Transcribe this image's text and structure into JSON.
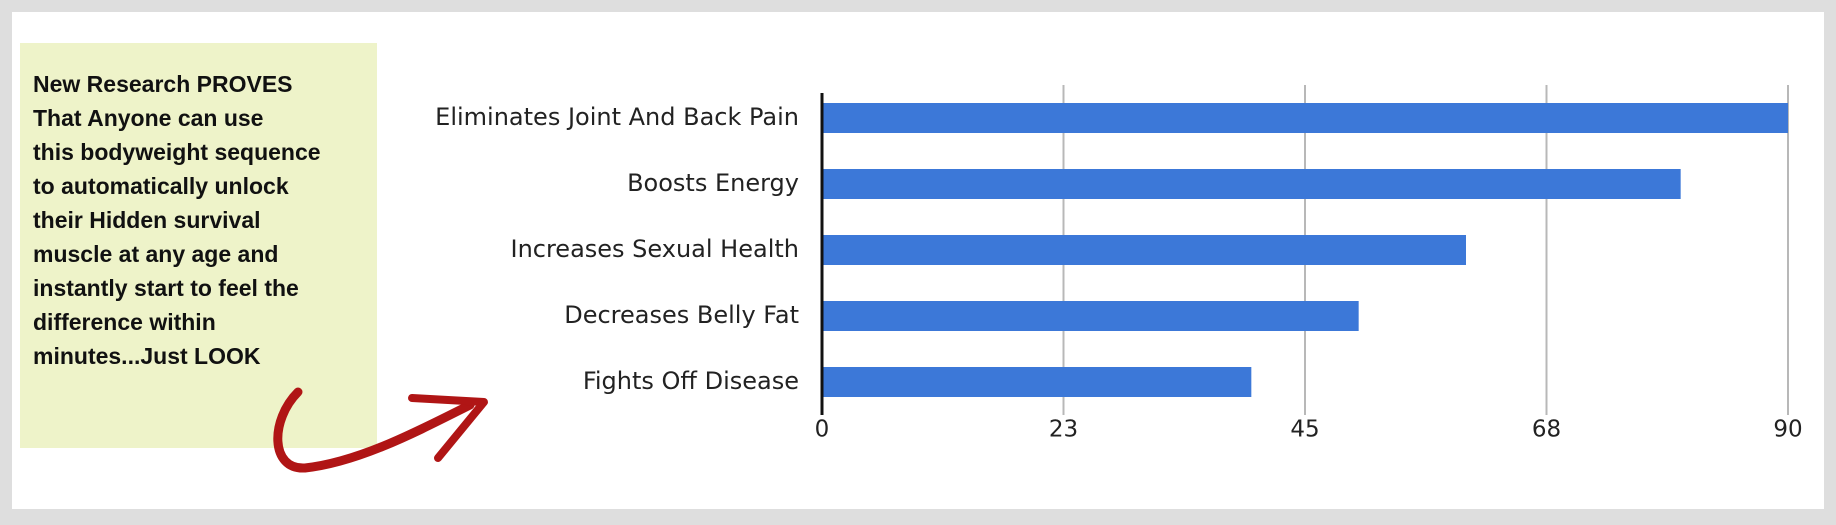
{
  "note": {
    "lines": [
      "New Research PROVES",
      "That Anyone can use",
      "this bodyweight sequence",
      "to automatically unlock",
      "their Hidden survival",
      "muscle at any age and",
      "instantly start to feel the",
      "difference within",
      "minutes...Just LOOK"
    ]
  },
  "chart_data": {
    "type": "hbar",
    "categories": [
      "Eliminates Joint And Back Pain",
      "Boosts Energy",
      "Increases Sexual Health",
      "Decreases Belly Fat",
      "Fights Off Disease"
    ],
    "values": [
      90,
      80,
      60,
      50,
      40
    ],
    "color": "#3c78d8",
    "xlim": [
      0,
      90
    ],
    "xticks": [
      0,
      {
        "value": 22.5,
        "label": "23"
      },
      45,
      {
        "value": 67.5,
        "label": "68"
      },
      90
    ],
    "grid": true
  }
}
